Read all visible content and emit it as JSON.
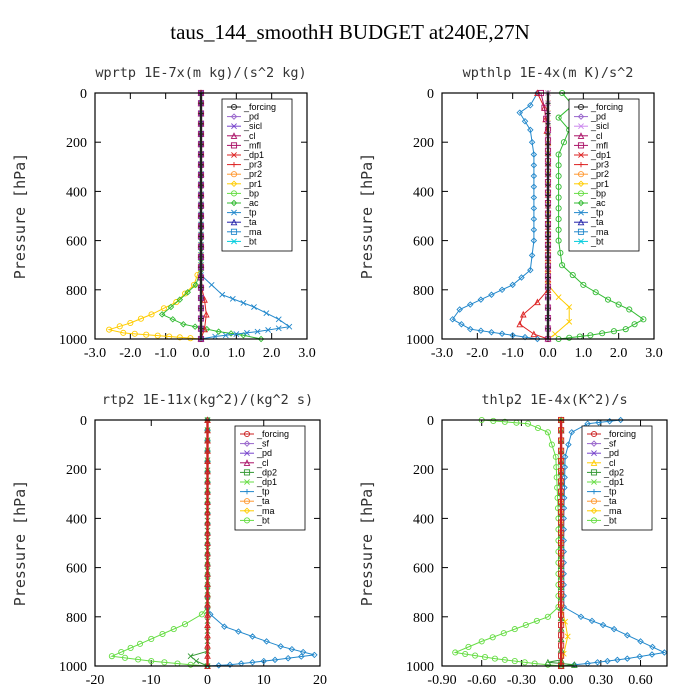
{
  "title": "taus_144_smoothH  BUDGET at240E,27N",
  "chart_data": [
    {
      "id": "wprtp",
      "type": "line",
      "title": "wprtp  1E-7x(m kg)/(s^2 kg)",
      "ylabel": "Pressure [hPa]",
      "xlim": [
        -3.0,
        3.0
      ],
      "xticks": [
        -3.0,
        -2.0,
        -1.0,
        0.0,
        1.0,
        2.0,
        3.0
      ],
      "xticklabels": [
        "-3.0",
        "-2.0",
        "-1.0",
        "0.0",
        "1.0",
        "2.0",
        "3.0"
      ],
      "ylim": [
        1000,
        0
      ],
      "yticks": [
        0,
        200,
        400,
        600,
        800,
        1000
      ],
      "legend": [
        "_forcing",
        "_pd",
        "_sicl",
        "_cl",
        "_mfl",
        "_dp1",
        "_pr3",
        "_pr2",
        "_pr1",
        "_bp",
        "_ac",
        "_tp",
        "_ta",
        "_ma",
        "_bt"
      ],
      "series": [
        {
          "name": "_pr1",
          "color": "#ffcc00",
          "points": [
            [
              0,
              0
            ],
            [
              0,
              700
            ],
            [
              -0.2,
              780
            ],
            [
              -0.7,
              850
            ],
            [
              -1.4,
              900
            ],
            [
              -2.0,
              935
            ],
            [
              -2.6,
              962
            ],
            [
              -2.2,
              975
            ],
            [
              -0.9,
              990
            ],
            [
              0,
              1000
            ]
          ]
        },
        {
          "name": "_ac",
          "color": "#33bb33",
          "points": [
            [
              0,
              0
            ],
            [
              0,
              720
            ],
            [
              -0.15,
              780
            ],
            [
              -0.6,
              840
            ],
            [
              -1.1,
              900
            ],
            [
              -0.5,
              940
            ],
            [
              0.5,
              970
            ],
            [
              1.2,
              985
            ],
            [
              1.7,
              1000
            ]
          ]
        },
        {
          "name": "_tp",
          "color": "#2288cc",
          "points": [
            [
              0,
              0
            ],
            [
              0,
              740
            ],
            [
              0.6,
              820
            ],
            [
              1.5,
              870
            ],
            [
              2.2,
              920
            ],
            [
              2.5,
              950
            ],
            [
              1.6,
              970
            ],
            [
              0.4,
              990
            ],
            [
              0,
              1000
            ]
          ]
        },
        {
          "name": "_dp1",
          "color": "#dd2222",
          "points": [
            [
              0,
              0
            ],
            [
              0,
              780
            ],
            [
              0.1,
              840
            ],
            [
              0.15,
              900
            ],
            [
              0.1,
              960
            ],
            [
              0,
              1000
            ]
          ]
        },
        {
          "name": "_cl",
          "color": "#aa1166",
          "points": [
            [
              0,
              0
            ],
            [
              0,
              1000
            ]
          ]
        },
        {
          "name": "_sicl",
          "color": "#7744cc",
          "points": [
            [
              0,
              0
            ],
            [
              0,
              1000
            ]
          ]
        },
        {
          "name": "_forcing",
          "color": "#222222",
          "points": [
            [
              0,
              0
            ],
            [
              0,
              1000
            ]
          ]
        }
      ]
    },
    {
      "id": "wpthlp",
      "type": "line",
      "title": "wpthlp  1E-4x(m K)/s^2",
      "ylabel": "Pressure [hPa]",
      "xlim": [
        -3.0,
        3.0
      ],
      "xticks": [
        -3.0,
        -2.0,
        -1.0,
        0.0,
        1.0,
        2.0,
        3.0
      ],
      "xticklabels": [
        "-3.0",
        "-2.0",
        "-1.0",
        "0.0",
        "1.0",
        "2.0",
        "3.0"
      ],
      "ylim": [
        1000,
        0
      ],
      "yticks": [
        0,
        200,
        400,
        600,
        800,
        1000
      ],
      "legend": [
        "_forcing",
        "_pd",
        "_sicl",
        "_cl",
        "_mfl",
        "_dp1",
        "_pr3",
        "_pr2",
        "_pr1",
        "_bp",
        "_ac",
        "_tp",
        "_ta",
        "_ma",
        "_bt"
      ],
      "series": [
        {
          "name": "_ac",
          "color": "#33bb33",
          "points": [
            [
              0.4,
              0
            ],
            [
              0.7,
              50
            ],
            [
              0.3,
              100
            ],
            [
              0.6,
              150
            ],
            [
              0.3,
              250
            ],
            [
              0.3,
              600
            ],
            [
              0.4,
              700
            ],
            [
              1.0,
              780
            ],
            [
              1.7,
              840
            ],
            [
              2.3,
              880
            ],
            [
              2.7,
              920
            ],
            [
              2.2,
              960
            ],
            [
              1.2,
              985
            ],
            [
              0.3,
              1000
            ]
          ]
        },
        {
          "name": "_tp",
          "color": "#2288cc",
          "points": [
            [
              -0.3,
              0
            ],
            [
              -0.5,
              50
            ],
            [
              -0.8,
              80
            ],
            [
              -0.5,
              150
            ],
            [
              -0.4,
              250
            ],
            [
              -0.4,
              600
            ],
            [
              -0.5,
              720
            ],
            [
              -1.0,
              780
            ],
            [
              -1.9,
              840
            ],
            [
              -2.5,
              880
            ],
            [
              -2.7,
              920
            ],
            [
              -2.2,
              960
            ],
            [
              -1.0,
              985
            ],
            [
              -0.3,
              1000
            ]
          ]
        },
        {
          "name": "_pr1",
          "color": "#ffcc00",
          "points": [
            [
              0,
              0
            ],
            [
              0,
              780
            ],
            [
              0.3,
              830
            ],
            [
              0.6,
              870
            ],
            [
              0.6,
              930
            ],
            [
              0.2,
              980
            ],
            [
              0,
              1000
            ]
          ]
        },
        {
          "name": "_dp1",
          "color": "#dd2222",
          "points": [
            [
              -0.3,
              0
            ],
            [
              -0.1,
              60
            ],
            [
              0,
              200
            ],
            [
              0,
              800
            ],
            [
              -0.3,
              850
            ],
            [
              -0.7,
              900
            ],
            [
              -0.8,
              940
            ],
            [
              -0.4,
              980
            ],
            [
              0,
              1000
            ]
          ]
        },
        {
          "name": "_cl",
          "color": "#aa1166",
          "points": [
            [
              -0.2,
              0
            ],
            [
              -0.1,
              60
            ],
            [
              0,
              150
            ],
            [
              0,
              1000
            ]
          ]
        },
        {
          "name": "_sicl",
          "color": "#cc88ee",
          "points": [
            [
              0,
              0
            ],
            [
              0,
              1000
            ]
          ]
        },
        {
          "name": "_forcing",
          "color": "#222222",
          "points": [
            [
              0,
              0
            ],
            [
              0,
              1000
            ]
          ]
        }
      ]
    },
    {
      "id": "rtp2",
      "type": "line",
      "title": "rtp2  1E-11x(kg^2)/(kg^2 s)",
      "ylabel": "Pressure [hPa]",
      "xlim": [
        -20,
        20
      ],
      "xticks": [
        -20,
        -10,
        0,
        10,
        20
      ],
      "xticklabels": [
        "-20",
        "-10",
        "0",
        "10",
        "20"
      ],
      "ylim": [
        1000,
        0
      ],
      "yticks": [
        0,
        200,
        400,
        600,
        800,
        1000
      ],
      "legend": [
        "_forcing",
        "_sf",
        "_pd",
        "_cl",
        "_dp2",
        "_dp1",
        "_tp",
        "_ta",
        "_ma",
        "_bt"
      ],
      "series": [
        {
          "name": "_dp1",
          "color": "#66dd44",
          "points": [
            [
              0,
              0
            ],
            [
              0,
              760
            ],
            [
              -1,
              790
            ],
            [
              -4,
              830
            ],
            [
              -8,
              870
            ],
            [
              -12,
              910
            ],
            [
              -17,
              960
            ],
            [
              -10,
              980
            ],
            [
              -3,
              995
            ],
            [
              0,
              1000
            ]
          ]
        },
        {
          "name": "_tp",
          "color": "#2288cc",
          "points": [
            [
              0,
              0
            ],
            [
              0,
              760
            ],
            [
              0.5,
              790
            ],
            [
              3,
              840
            ],
            [
              8,
              880
            ],
            [
              13,
              920
            ],
            [
              19,
              955
            ],
            [
              12,
              975
            ],
            [
              4,
              995
            ],
            [
              0,
              1000
            ]
          ]
        },
        {
          "name": "_dp2",
          "color": "#339933",
          "points": [
            [
              0,
              0
            ],
            [
              0,
              940
            ],
            [
              -3,
              960
            ],
            [
              -2,
              980
            ],
            [
              0,
              1000
            ]
          ]
        },
        {
          "name": "_forcing",
          "color": "#cc2222",
          "points": [
            [
              0,
              0
            ],
            [
              0,
              1000
            ]
          ]
        }
      ]
    },
    {
      "id": "thlp2",
      "type": "line",
      "title": "thlp2  1E-4x(K^2)/s",
      "ylabel": "Pressure [hPa]",
      "xlim": [
        -0.9,
        0.8
      ],
      "xticks": [
        -0.9,
        -0.6,
        -0.3,
        0.0,
        0.3,
        0.6
      ],
      "xticklabels": [
        "-0.90",
        "-0.60",
        "-0.30",
        "0.00",
        "0.30",
        "0.60"
      ],
      "ylim": [
        1000,
        0
      ],
      "yticks": [
        0,
        200,
        400,
        600,
        800,
        1000
      ],
      "legend": [
        "_forcing",
        "_sf",
        "_pd",
        "_cl",
        "_dp2",
        "_dp1",
        "_tp",
        "_ta",
        "_ma",
        "_bt"
      ],
      "series": [
        {
          "name": "_dp1",
          "color": "#66dd44",
          "points": [
            [
              -0.6,
              0
            ],
            [
              -0.25,
              15
            ],
            [
              -0.1,
              50
            ],
            [
              -0.04,
              150
            ],
            [
              -0.02,
              400
            ],
            [
              -0.02,
              760
            ],
            [
              -0.1,
              800
            ],
            [
              -0.35,
              850
            ],
            [
              -0.6,
              900
            ],
            [
              -0.8,
              945
            ],
            [
              -0.5,
              970
            ],
            [
              -0.2,
              990
            ],
            [
              0,
              1000
            ]
          ]
        },
        {
          "name": "_tp",
          "color": "#2288cc",
          "points": [
            [
              0.45,
              0
            ],
            [
              0.2,
              15
            ],
            [
              0.08,
              50
            ],
            [
              0.03,
              150
            ],
            [
              0.02,
              400
            ],
            [
              0.02,
              760
            ],
            [
              0.15,
              800
            ],
            [
              0.4,
              850
            ],
            [
              0.6,
              900
            ],
            [
              0.78,
              945
            ],
            [
              0.5,
              970
            ],
            [
              0.2,
              990
            ],
            [
              0,
              1000
            ]
          ]
        },
        {
          "name": "_cl",
          "color": "#ffcc00",
          "points": [
            [
              0,
              0
            ],
            [
              0,
              760
            ],
            [
              0.03,
              820
            ],
            [
              0.05,
              880
            ],
            [
              0.02,
              950
            ],
            [
              0,
              1000
            ]
          ]
        },
        {
          "name": "_dp2",
          "color": "#339933",
          "points": [
            [
              0,
              0
            ],
            [
              0,
              975
            ],
            [
              -0.1,
              985
            ],
            [
              0.1,
              995
            ],
            [
              0,
              1000
            ]
          ]
        },
        {
          "name": "_forcing",
          "color": "#cc2222",
          "points": [
            [
              0,
              0
            ],
            [
              0,
              1000
            ]
          ]
        }
      ]
    }
  ]
}
